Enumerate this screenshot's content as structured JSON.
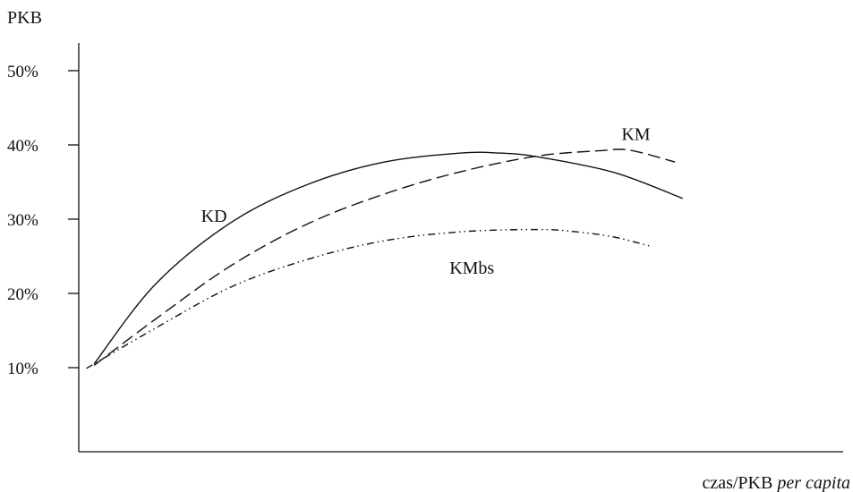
{
  "chart_data": {
    "type": "line",
    "title": "",
    "ylabel": "PKB",
    "xlabel": "czas/PKB",
    "xlabel_italic": "per capita",
    "x_range": [
      0,
      1
    ],
    "ylim": [
      0,
      52
    ],
    "y_ticks": [
      {
        "value": 10,
        "label": "10%"
      },
      {
        "value": 20,
        "label": "20%"
      },
      {
        "value": 30,
        "label": "30%"
      },
      {
        "value": 40,
        "label": "40%"
      },
      {
        "value": 50,
        "label": "50%"
      }
    ],
    "grid": false,
    "legend": "none",
    "series": [
      {
        "name": "KD",
        "style": "solid",
        "x": [
          0.02,
          0.1,
          0.2,
          0.3,
          0.4,
          0.5,
          0.55,
          0.6,
          0.7,
          0.79
        ],
        "y": [
          10.5,
          21.2,
          29.6,
          34.7,
          37.7,
          38.9,
          38.9,
          38.4,
          36.3,
          32.8
        ]
      },
      {
        "name": "KM",
        "style": "dashed",
        "x": [
          0.02,
          0.1,
          0.2,
          0.3,
          0.4,
          0.5,
          0.6,
          0.68,
          0.72,
          0.78
        ],
        "y": [
          10.3,
          16.5,
          23.8,
          29.4,
          33.4,
          36.4,
          38.5,
          39.2,
          39.3,
          37.7
        ]
      },
      {
        "name": "KMbs",
        "style": "dash-dot-dot",
        "x": [
          0.01,
          0.1,
          0.2,
          0.3,
          0.4,
          0.5,
          0.6,
          0.65,
          0.7,
          0.75
        ],
        "y": [
          9.9,
          15.3,
          20.9,
          24.6,
          27.1,
          28.3,
          28.6,
          28.3,
          27.6,
          26.3
        ]
      }
    ],
    "annotations": [
      {
        "text": "KD",
        "x": 0.16,
        "y": 30.5
      },
      {
        "text": "KM",
        "x": 0.71,
        "y": 41.5
      },
      {
        "text": "KMbs",
        "x": 0.485,
        "y": 23.5
      }
    ]
  }
}
